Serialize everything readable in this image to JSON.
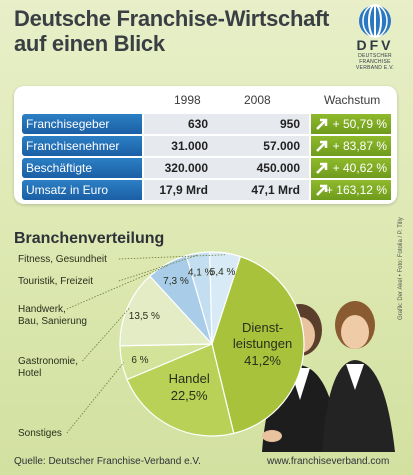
{
  "title": {
    "line1": "Deutsche Franchise-Wirtschaft",
    "line2": "auf einen Blick"
  },
  "logo": {
    "acronym": "DFV",
    "line1": "DEUTSCHER",
    "line2": "FRANCHISE",
    "line3": "VERBAND E.V."
  },
  "table": {
    "headers": {
      "y1": "1998",
      "y2": "2008",
      "growth": "Wachstum"
    },
    "rows": [
      {
        "label": "Franchisegeber",
        "v1998": "630",
        "v2008": "950",
        "growth": "+ 50,79 %"
      },
      {
        "label": "Franchisenehmer",
        "v1998": "31.000",
        "v2008": "57.000",
        "growth": "+ 83,87 %"
      },
      {
        "label": "Beschäftigte",
        "v1998": "320.000",
        "v2008": "450.000",
        "growth": "+ 40,62 %"
      },
      {
        "label": "Umsatz in Euro",
        "v1998": "17,9 Mrd",
        "v2008": "47,1 Mrd",
        "growth": "+ 163,12 %"
      }
    ]
  },
  "section_title": "Branchenverteilung",
  "chart_data": {
    "type": "pie",
    "title": "Branchenverteilung",
    "slices": [
      {
        "name": "Dienst-leistungen",
        "label_line1": "Dienst-",
        "label_line2": "leistungen",
        "value": 41.2,
        "value_label": "41,2%",
        "color": "#a9c23c"
      },
      {
        "name": "Handel",
        "label_line1": "Handel",
        "label_line2": "",
        "value": 22.5,
        "value_label": "22,5%",
        "color": "#b9d156"
      },
      {
        "name": "Sonstiges",
        "label_line1": "Sonstiges",
        "label_line2": "",
        "value": 6,
        "value_label": "6 %",
        "color": "#d3e39a"
      },
      {
        "name": "Gastronomie, Hotel",
        "label_line1": "Gastronomie,",
        "label_line2": "Hotel",
        "value": 13.5,
        "value_label": "13,5 %",
        "color": "#e4ecc6"
      },
      {
        "name": "Handwerk, Bau, Sanierung",
        "label_line1": "Handwerk,",
        "label_line2": "Bau, Sanierung",
        "value": 7.3,
        "value_label": "7,3 %",
        "color": "#a9cce9"
      },
      {
        "name": "Touristik, Freizeit",
        "label_line1": "Touristik, Freizeit",
        "label_line2": "",
        "value": 4.1,
        "value_label": "4,1 %",
        "color": "#c3ddf1"
      },
      {
        "name": "Fitness, Gesundheit",
        "label_line1": "Fitness, Gesundheit",
        "label_line2": "",
        "value": 5.4,
        "value_label": "5,4 %",
        "color": "#d9eaf7"
      }
    ]
  },
  "footer": {
    "source": "Quelle: Deutscher Franchise-Verband e.V.",
    "url": "www.franchiseverband.com"
  },
  "credit": "Grafik: Der Akel • Foto: Fotolia / P. Tilly",
  "colors": {
    "label_blue": "#1f68ad",
    "growth_green": "#7ca624",
    "background": "#dfe9b8"
  },
  "icons": [
    "up-arrow-icon",
    "globe-icon"
  ]
}
